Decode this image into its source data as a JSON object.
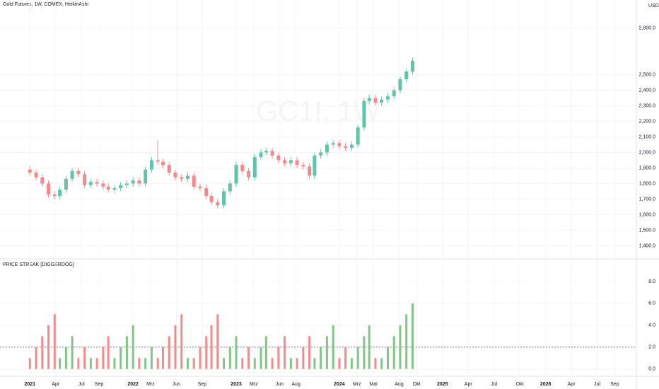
{
  "title": "Gold Futures, 1W, COMEX, HeikinAshi",
  "currency": "USD",
  "watermark": "GC1!, 1W",
  "chart_data": [
    {
      "type": "candlestick",
      "x": [
        2021.0,
        2021.06,
        2021.12,
        2021.18,
        2021.24,
        2021.29,
        2021.35,
        2021.41,
        2021.47,
        2021.53,
        2021.59,
        2021.65,
        2021.71,
        2021.76,
        2021.82,
        2021.88,
        2021.94,
        2022.0,
        2022.06,
        2022.12,
        2022.18,
        2022.24,
        2022.29,
        2022.35,
        2022.41,
        2022.47,
        2022.53,
        2022.59,
        2022.65,
        2022.71,
        2022.76,
        2022.82,
        2022.88,
        2022.94,
        2023.0,
        2023.06,
        2023.12,
        2023.18,
        2023.24,
        2023.29,
        2023.35,
        2023.41,
        2023.47,
        2023.53,
        2023.59,
        2023.65,
        2023.71,
        2023.76,
        2023.82,
        2023.88,
        2023.94,
        2024.0,
        2024.06,
        2024.12,
        2024.18,
        2024.24,
        2024.29,
        2024.35,
        2024.41,
        2024.47,
        2024.53,
        2024.59,
        2024.65,
        2024.71
      ],
      "open": [
        1890,
        1870,
        1840,
        1800,
        1730,
        1720,
        1760,
        1830,
        1880,
        1860,
        1790,
        1810,
        1800,
        1780,
        1760,
        1770,
        1790,
        1800,
        1820,
        1800,
        1890,
        1950,
        1940,
        1920,
        1870,
        1840,
        1830,
        1850,
        1780,
        1770,
        1720,
        1680,
        1660,
        1750,
        1800,
        1920,
        1880,
        1840,
        1970,
        2000,
        2010,
        1980,
        1950,
        1930,
        1950,
        1920,
        1910,
        1850,
        1980,
        2000,
        2050,
        2060,
        2040,
        2030,
        2050,
        2160,
        2330,
        2350,
        2320,
        2340,
        2360,
        2400,
        2470,
        2520
      ],
      "high": [
        1910,
        1890,
        1860,
        1820,
        1750,
        1780,
        1850,
        1900,
        1900,
        1880,
        1830,
        1830,
        1820,
        1800,
        1790,
        1810,
        1820,
        1840,
        1840,
        1910,
        1970,
        2080,
        1960,
        1940,
        1890,
        1860,
        1870,
        1870,
        1800,
        1790,
        1740,
        1700,
        1770,
        1820,
        1940,
        1940,
        1900,
        1990,
        2020,
        2030,
        2030,
        2000,
        1970,
        1970,
        1970,
        1940,
        1930,
        2000,
        2020,
        2070,
        2080,
        2080,
        2060,
        2070,
        2180,
        2350,
        2370,
        2370,
        2360,
        2380,
        2420,
        2490,
        2540,
        2610
      ],
      "low": [
        1850,
        1820,
        1780,
        1710,
        1700,
        1700,
        1740,
        1810,
        1840,
        1770,
        1770,
        1780,
        1760,
        1740,
        1740,
        1750,
        1770,
        1780,
        1780,
        1780,
        1870,
        1920,
        1900,
        1850,
        1820,
        1810,
        1810,
        1760,
        1750,
        1700,
        1660,
        1640,
        1640,
        1730,
        1780,
        1860,
        1820,
        1820,
        1950,
        1980,
        1960,
        1930,
        1910,
        1910,
        1900,
        1890,
        1830,
        1830,
        1960,
        1980,
        2030,
        2020,
        2010,
        2010,
        2030,
        2140,
        2310,
        2300,
        2300,
        2320,
        2340,
        2380,
        2450,
        2500
      ],
      "close": [
        1870,
        1840,
        1800,
        1730,
        1720,
        1760,
        1830,
        1880,
        1860,
        1790,
        1810,
        1800,
        1780,
        1760,
        1770,
        1790,
        1800,
        1820,
        1800,
        1890,
        1950,
        1940,
        1920,
        1870,
        1840,
        1830,
        1850,
        1780,
        1770,
        1720,
        1680,
        1660,
        1750,
        1800,
        1920,
        1880,
        1840,
        1970,
        2000,
        2010,
        1980,
        1950,
        1930,
        1950,
        1920,
        1910,
        1850,
        1980,
        2000,
        2050,
        2060,
        2040,
        2030,
        2050,
        2160,
        2330,
        2350,
        2320,
        2340,
        2360,
        2400,
        2470,
        2520,
        2590
      ],
      "up_color": "#5fc4a8",
      "down_color": "#f7878b",
      "xlim": [
        2020.71,
        2026.88
      ],
      "xticks": [
        {
          "value": 2021,
          "label": "2021"
        },
        {
          "value": 2021.25,
          "label": "Apr"
        },
        {
          "value": 2021.5,
          "label": "Jul"
        },
        {
          "value": 2021.67,
          "label": "Sep"
        },
        {
          "value": 2022,
          "label": "2022"
        },
        {
          "value": 2022.17,
          "label": "Mrz"
        },
        {
          "value": 2022.42,
          "label": "Jun"
        },
        {
          "value": 2022.67,
          "label": "Sep"
        },
        {
          "value": 2023,
          "label": "2023"
        },
        {
          "value": 2023.17,
          "label": "Mrz"
        },
        {
          "value": 2023.42,
          "label": "Jun"
        },
        {
          "value": 2023.58,
          "label": "Aug"
        },
        {
          "value": 2024,
          "label": "2024"
        },
        {
          "value": 2024.17,
          "label": "Mrz"
        },
        {
          "value": 2024.33,
          "label": "Mai"
        },
        {
          "value": 2024.58,
          "label": "Aug"
        },
        {
          "value": 2024.75,
          "label": "Okt"
        },
        {
          "value": 2025,
          "label": "2025"
        },
        {
          "value": 2025.25,
          "label": "Apr"
        },
        {
          "value": 2025.5,
          "label": "Jul"
        },
        {
          "value": 2025.75,
          "label": "Okt"
        },
        {
          "value": 2026,
          "label": "2026"
        },
        {
          "value": 2026.25,
          "label": "Apr"
        },
        {
          "value": 2026.5,
          "label": "Jul"
        },
        {
          "value": 2026.67,
          "label": "Sep"
        }
      ],
      "ylim": [
        1320,
        2980
      ],
      "yticks": [
        {
          "value": 1400,
          "label": "1,400.0"
        },
        {
          "value": 1500,
          "label": "1,500.0"
        },
        {
          "value": 1600,
          "label": "1,600.0"
        },
        {
          "value": 1700,
          "label": "1,700.0"
        },
        {
          "value": 1800,
          "label": "1,800.0"
        },
        {
          "value": 1900,
          "label": "1,900.0"
        },
        {
          "value": 2000,
          "label": "2,000.0"
        },
        {
          "value": 2100,
          "label": "2,100.0"
        },
        {
          "value": 2200,
          "label": "2,200.0"
        },
        {
          "value": 2300,
          "label": "2,300.0"
        },
        {
          "value": 2400,
          "label": "2,400.0"
        },
        {
          "value": 2500,
          "label": "2,500.0"
        },
        {
          "value": 2800,
          "label": "2,800.0"
        }
      ],
      "grid": true
    },
    {
      "type": "bar",
      "title": "PRICE STREAK [DIGGERDOG]",
      "values": [
        1,
        2,
        3,
        4,
        5,
        1,
        2,
        3,
        1,
        2,
        1,
        1,
        2,
        3,
        1,
        2,
        3,
        4,
        1,
        1,
        2,
        1,
        2,
        3,
        4,
        5,
        1,
        1,
        2,
        3,
        4,
        5,
        1,
        2,
        3,
        1,
        2,
        1,
        2,
        3,
        1,
        2,
        3,
        1,
        1,
        2,
        3,
        1,
        2,
        3,
        4,
        1,
        2,
        1,
        2,
        3,
        4,
        1,
        1,
        2,
        3,
        4,
        5,
        6
      ],
      "up_color": "#7fc785",
      "down_color": "#f28b8b",
      "threshold": 2,
      "ylim": [
        -0.6,
        10
      ],
      "yticks": [
        {
          "value": 0,
          "label": "0.0"
        },
        {
          "value": 2,
          "label": "2.0"
        },
        {
          "value": 4,
          "label": "4.0"
        },
        {
          "value": 6,
          "label": "6.0"
        },
        {
          "value": 8,
          "label": "8.0"
        }
      ],
      "grid": true
    }
  ]
}
